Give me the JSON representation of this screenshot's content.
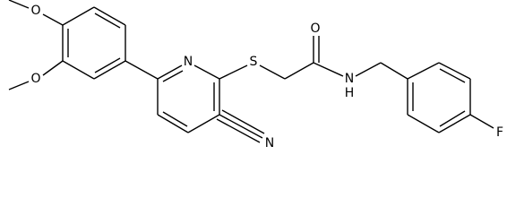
{
  "atoms": {
    "methoxy_o_top": "O",
    "methoxy_o_bottom": "O",
    "pyridine_n": "N",
    "sulfur": "S",
    "carbonyl_o": "O",
    "amide_n": "N",
    "amide_h": "H",
    "nitrile_n": "N",
    "fluorine": "F"
  }
}
